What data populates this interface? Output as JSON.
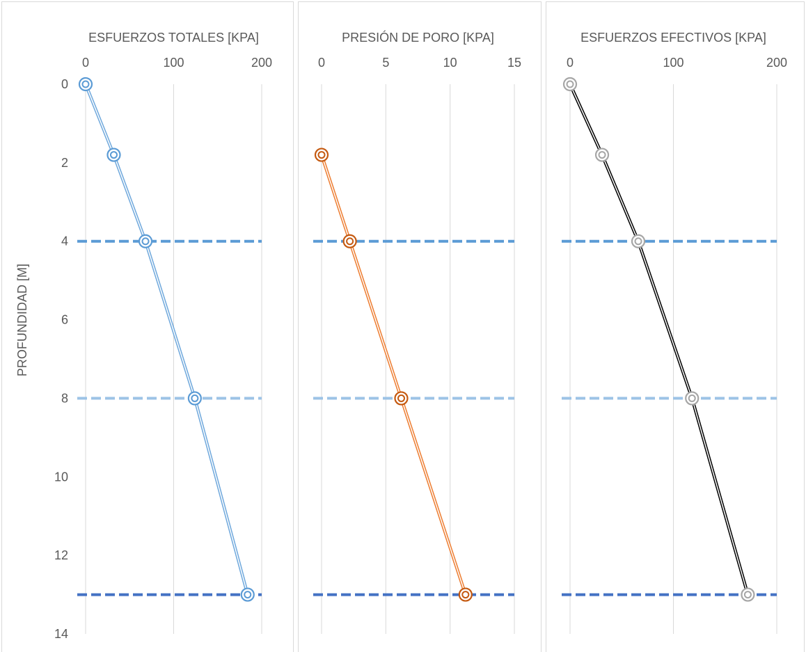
{
  "y_axis": {
    "label": "PROFUNDIDAD [M]",
    "range": [
      0,
      14
    ],
    "ticks": [
      0,
      2,
      4,
      6,
      8,
      10,
      12,
      14
    ],
    "reversed": true
  },
  "layer_boundaries": [
    {
      "depth": 4,
      "color": "#5b9bd5"
    },
    {
      "depth": 8,
      "color": "#9dc3e6"
    },
    {
      "depth": 13,
      "color": "#4472c4"
    }
  ],
  "chart_data": [
    {
      "type": "line",
      "title": "ESFUERZOS TOTALES [KPA]",
      "xlim": [
        0,
        200
      ],
      "xticks": [
        0,
        100,
        200
      ],
      "grid": true,
      "line_color": "#6fa8dc",
      "marker_color": "#5b9bd5",
      "points": [
        {
          "x": 0,
          "y": 0
        },
        {
          "x": 32,
          "y": 1.8
        },
        {
          "x": 68,
          "y": 4
        },
        {
          "x": 124,
          "y": 8
        },
        {
          "x": 184,
          "y": 13
        }
      ]
    },
    {
      "type": "line",
      "title": "PRESIÓN DE PORO [KPA]",
      "xlim": [
        0,
        15
      ],
      "xticks": [
        0,
        5,
        10,
        15
      ],
      "grid": true,
      "line_color": "#ed7d31",
      "marker_color": "#c55a11",
      "points": [
        {
          "x": 0,
          "y": 1.8
        },
        {
          "x": 2.2,
          "y": 4
        },
        {
          "x": 6.2,
          "y": 8
        },
        {
          "x": 11.2,
          "y": 13
        }
      ]
    },
    {
      "type": "line",
      "title": "ESFUERZOS EFECTIVOS [KPA]",
      "xlim": [
        0,
        200
      ],
      "xticks": [
        0,
        100,
        200
      ],
      "grid": true,
      "line_color": "#000000",
      "marker_color": "#a6a6a6",
      "points": [
        {
          "x": 0,
          "y": 0
        },
        {
          "x": 31,
          "y": 1.8
        },
        {
          "x": 66,
          "y": 4
        },
        {
          "x": 118,
          "y": 8
        },
        {
          "x": 172,
          "y": 13
        }
      ]
    }
  ]
}
